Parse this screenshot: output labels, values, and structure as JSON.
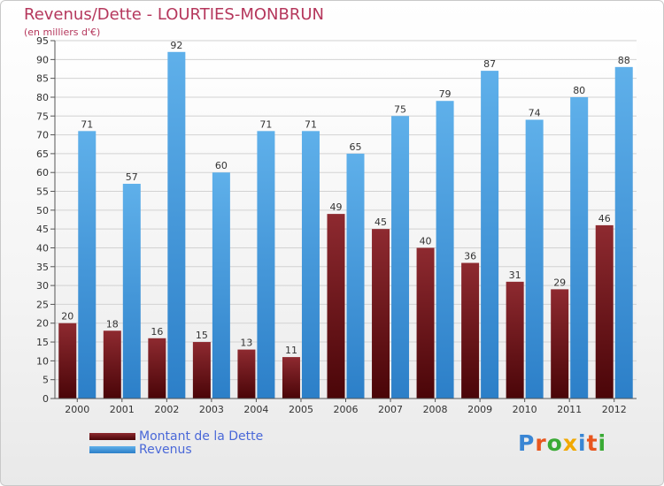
{
  "header": {
    "title": "Revenus/Dette - LOURTIES-MONBRUN",
    "subtitle": "(en milliers d'€)"
  },
  "chart_data": {
    "type": "bar",
    "title": "Revenus/Dette - LOURTIES-MONBRUN",
    "subtitle": "(en milliers d'€)",
    "categories": [
      "2000",
      "2001",
      "2002",
      "2003",
      "2004",
      "2005",
      "2006",
      "2007",
      "2008",
      "2009",
      "2010",
      "2011",
      "2012"
    ],
    "series": [
      {
        "name": "Montant de la Dette",
        "color": "#7a1a1e",
        "values": [
          20,
          18,
          16,
          15,
          13,
          11,
          49,
          45,
          40,
          36,
          31,
          29,
          46
        ]
      },
      {
        "name": "Revenus",
        "color": "#4a9fe0",
        "values": [
          71,
          57,
          92,
          60,
          71,
          71,
          65,
          75,
          79,
          87,
          74,
          80,
          88
        ]
      }
    ],
    "xlabel": "",
    "ylabel": "",
    "ylim": [
      0,
      95
    ],
    "yticks": [
      0,
      5,
      10,
      15,
      20,
      25,
      30,
      35,
      40,
      45,
      50,
      55,
      60,
      65,
      70,
      75,
      80,
      85,
      90,
      95
    ],
    "grid": true,
    "legend": "bottom-left"
  },
  "legend": {
    "items": [
      {
        "label": "Montant de la Dette",
        "color": "#7a1a1e"
      },
      {
        "label": "Revenus",
        "color": "#4a9fe0"
      }
    ]
  },
  "logo": {
    "text": "Proxiti",
    "colors": [
      "#3a86d4",
      "#e8561e",
      "#3aaa35",
      "#f1a800",
      "#3a86d4",
      "#e8561e",
      "#3aaa35"
    ]
  }
}
